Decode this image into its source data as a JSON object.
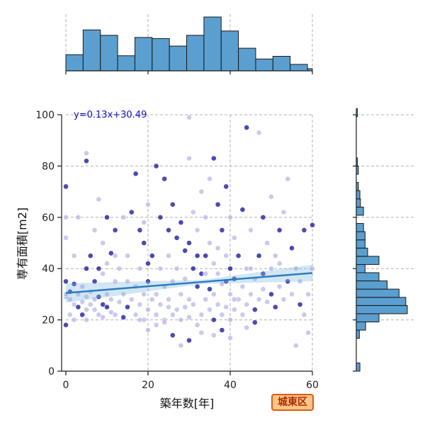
{
  "chart_data": {
    "type": "scatter",
    "xlabel": "築年数[年]",
    "ylabel": "専有面積[m2]",
    "xlim": [
      0,
      60
    ],
    "ylim": [
      0,
      100
    ],
    "xticks": [
      0,
      20,
      40,
      60
    ],
    "yticks": [
      0,
      20,
      40,
      60,
      80,
      100
    ],
    "grid": true,
    "regression": {
      "label": "y=0.13x+30.49",
      "slope": 0.13,
      "intercept": 30.49
    },
    "top_histogram": {
      "bin_edges": [
        0,
        4.2,
        8.4,
        12.6,
        16.8,
        21.0,
        25.2,
        29.4,
        33.6,
        37.8,
        42.0,
        46.2,
        50.4,
        54.6,
        58.8,
        60
      ],
      "counts": [
        30,
        76,
        66,
        28,
        62,
        60,
        46,
        66,
        100,
        74,
        42,
        22,
        27,
        12,
        4
      ]
    },
    "right_histogram": {
      "bin_edges": [
        0,
        3.2,
        6.4,
        9.6,
        12.8,
        16.0,
        19.2,
        22.4,
        25.6,
        28.8,
        32.0,
        35.2,
        38.4,
        41.6,
        44.8,
        48.0,
        51.2,
        54.4,
        57.6,
        60.8,
        64.0,
        67.2,
        70.4,
        73.6,
        76.8,
        80.0,
        83.2,
        86.4,
        89.6,
        92.8,
        96.0,
        99.2,
        102.4
      ],
      "counts": [
        7,
        0,
        0,
        0,
        6,
        18,
        44,
        99,
        96,
        83,
        60,
        44,
        17,
        44,
        22,
        17,
        17,
        14,
        0,
        14,
        8,
        7,
        4,
        0,
        4,
        2,
        0,
        0,
        0,
        0,
        0,
        2
      ]
    },
    "points": [
      [
        0,
        35
      ],
      [
        0,
        29
      ],
      [
        0,
        30
      ],
      [
        0,
        18
      ],
      [
        0,
        52
      ],
      [
        0,
        60
      ],
      [
        0,
        72
      ],
      [
        1,
        28
      ],
      [
        1,
        22
      ],
      [
        1,
        31
      ],
      [
        2,
        26
      ],
      [
        2,
        20
      ],
      [
        2,
        34
      ],
      [
        2,
        45
      ],
      [
        3,
        30
      ],
      [
        3,
        25
      ],
      [
        3,
        60
      ],
      [
        4,
        27
      ],
      [
        4,
        22
      ],
      [
        4,
        33
      ],
      [
        5,
        85
      ],
      [
        5,
        82
      ],
      [
        5,
        29
      ],
      [
        5,
        24
      ],
      [
        5,
        40
      ],
      [
        6,
        31
      ],
      [
        6,
        26
      ],
      [
        6,
        45
      ],
      [
        7,
        24
      ],
      [
        7,
        28
      ],
      [
        7,
        35
      ],
      [
        7,
        55
      ],
      [
        8,
        22
      ],
      [
        8,
        29
      ],
      [
        8,
        67
      ],
      [
        9,
        21
      ],
      [
        9,
        26
      ],
      [
        9,
        38
      ],
      [
        9,
        50
      ],
      [
        10,
        25
      ],
      [
        10,
        30
      ],
      [
        10,
        42
      ],
      [
        10,
        60
      ],
      [
        11,
        23
      ],
      [
        11,
        28
      ],
      [
        11,
        46
      ],
      [
        12,
        22
      ],
      [
        12,
        35
      ],
      [
        12,
        55
      ],
      [
        13,
        27
      ],
      [
        13,
        40
      ],
      [
        14,
        21
      ],
      [
        14,
        30
      ],
      [
        14,
        60
      ],
      [
        15,
        25
      ],
      [
        15,
        45
      ],
      [
        16,
        28
      ],
      [
        16,
        62
      ],
      [
        17,
        22
      ],
      [
        17,
        33
      ],
      [
        17,
        77
      ],
      [
        18,
        26
      ],
      [
        18,
        40
      ],
      [
        18,
        55
      ],
      [
        19,
        20
      ],
      [
        19,
        30
      ],
      [
        19,
        50
      ],
      [
        19,
        58
      ],
      [
        20,
        24
      ],
      [
        20,
        35
      ],
      [
        20,
        65
      ],
      [
        21,
        28
      ],
      [
        21,
        45
      ],
      [
        22,
        22
      ],
      [
        22,
        30
      ],
      [
        22,
        80
      ],
      [
        23,
        26
      ],
      [
        23,
        40
      ],
      [
        23,
        60
      ],
      [
        24,
        20
      ],
      [
        24,
        33
      ],
      [
        24,
        75
      ],
      [
        25,
        28
      ],
      [
        25,
        45
      ],
      [
        25,
        55
      ],
      [
        26,
        22
      ],
      [
        26,
        35
      ],
      [
        26,
        65
      ],
      [
        27,
        24
      ],
      [
        27,
        40
      ],
      [
        27,
        52
      ],
      [
        28,
        20
      ],
      [
        28,
        30
      ],
      [
        28,
        58
      ],
      [
        29,
        25
      ],
      [
        29,
        36
      ],
      [
        29,
        47
      ],
      [
        30,
        21
      ],
      [
        30,
        28
      ],
      [
        30,
        50
      ],
      [
        30,
        83
      ],
      [
        31,
        26
      ],
      [
        31,
        40
      ],
      [
        31,
        62
      ],
      [
        32,
        18
      ],
      [
        32,
        33
      ],
      [
        32,
        55
      ],
      [
        33,
        22
      ],
      [
        33,
        38
      ],
      [
        33,
        70
      ],
      [
        34,
        28
      ],
      [
        34,
        45
      ],
      [
        34,
        60
      ],
      [
        35,
        24
      ],
      [
        35,
        32
      ],
      [
        35,
        50
      ],
      [
        35,
        75
      ],
      [
        36,
        20
      ],
      [
        36,
        30
      ],
      [
        36,
        42
      ],
      [
        36,
        83
      ],
      [
        37,
        26
      ],
      [
        37,
        38
      ],
      [
        37,
        65
      ],
      [
        38,
        22
      ],
      [
        38,
        34
      ],
      [
        38,
        55
      ],
      [
        39,
        25
      ],
      [
        39,
        45
      ],
      [
        39,
        72
      ],
      [
        40,
        20
      ],
      [
        40,
        30
      ],
      [
        40,
        40
      ],
      [
        40,
        60
      ],
      [
        41,
        24
      ],
      [
        41,
        36
      ],
      [
        41,
        52
      ],
      [
        42,
        28
      ],
      [
        42,
        45
      ],
      [
        43,
        22
      ],
      [
        43,
        33
      ],
      [
        43,
        63
      ],
      [
        44,
        26
      ],
      [
        44,
        40
      ],
      [
        44,
        95
      ],
      [
        45,
        30
      ],
      [
        45,
        55
      ],
      [
        46,
        24
      ],
      [
        46,
        36
      ],
      [
        47,
        28
      ],
      [
        47,
        45
      ],
      [
        47,
        93
      ],
      [
        48,
        32
      ],
      [
        48,
        60
      ],
      [
        49,
        27
      ],
      [
        49,
        50
      ],
      [
        50,
        30
      ],
      [
        50,
        40
      ],
      [
        50,
        68
      ],
      [
        51,
        25
      ],
      [
        51,
        45
      ],
      [
        52,
        33
      ],
      [
        52,
        55
      ],
      [
        53,
        28
      ],
      [
        53,
        62
      ],
      [
        54,
        35
      ],
      [
        54,
        75
      ],
      [
        55,
        30
      ],
      [
        55,
        48
      ],
      [
        56,
        10
      ],
      [
        56,
        40
      ],
      [
        57,
        26
      ],
      [
        57,
        35
      ],
      [
        58,
        22
      ],
      [
        58,
        55
      ],
      [
        59,
        15
      ],
      [
        59,
        30
      ],
      [
        60,
        57
      ],
      [
        60,
        40
      ],
      [
        5,
        20
      ],
      [
        8,
        40
      ],
      [
        12,
        45
      ],
      [
        15,
        35
      ],
      [
        20,
        42
      ],
      [
        25,
        25
      ],
      [
        30,
        99
      ],
      [
        32,
        45
      ],
      [
        34,
        38
      ],
      [
        37,
        48
      ],
      [
        39,
        35
      ],
      [
        41,
        28
      ],
      [
        45,
        40
      ],
      [
        48,
        38
      ],
      [
        52,
        42
      ],
      [
        28,
        10
      ],
      [
        30,
        12
      ],
      [
        33,
        15
      ],
      [
        36,
        14
      ],
      [
        38,
        16
      ],
      [
        40,
        13
      ],
      [
        44,
        17
      ],
      [
        46,
        19
      ],
      [
        22,
        18
      ],
      [
        24,
        19
      ],
      [
        26,
        14
      ],
      [
        20,
        16
      ],
      [
        18,
        20
      ]
    ]
  },
  "badge": {
    "label": "城東区"
  }
}
